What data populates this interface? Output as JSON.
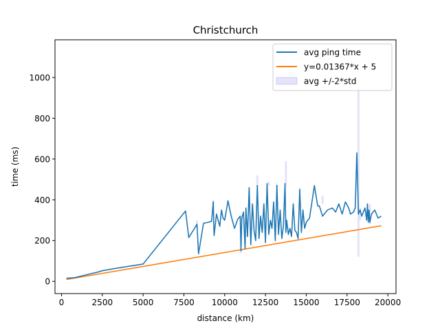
{
  "chart_data": {
    "type": "line",
    "title": "Christchurch",
    "xlabel": "distance (km)",
    "ylabel": "time (ms)",
    "xlim": [
      -400,
      20500
    ],
    "ylim": [
      -60,
      1185
    ],
    "x_ticks": [
      0,
      2500,
      5000,
      7500,
      10000,
      12500,
      15000,
      17500,
      20000
    ],
    "x_tick_labels": [
      "0",
      "2500",
      "5000",
      "7500",
      "10000",
      "12500",
      "15000",
      "17500",
      "20000"
    ],
    "y_ticks": [
      0,
      200,
      400,
      600,
      800,
      1000
    ],
    "y_tick_labels": [
      "0",
      "200",
      "400",
      "600",
      "800",
      "1000"
    ],
    "grid": false,
    "legend_position": "top-right",
    "legend": [
      {
        "label": "avg ping time",
        "kind": "line",
        "color": "#1f77b4"
      },
      {
        "label": "y=0.01367*x + 5",
        "kind": "line",
        "color": "#ff7f0e"
      },
      {
        "label": "avg +/-2*std",
        "kind": "band",
        "color": "#c8c8f5"
      }
    ],
    "series": [
      {
        "name": "avg ping time",
        "color": "#1f77b4",
        "x": [
          300,
          800,
          2200,
          2500,
          3200,
          5000,
          7600,
          7800,
          8300,
          8400,
          8700,
          9000,
          9200,
          9300,
          9350,
          9500,
          9700,
          9800,
          9900,
          10000,
          10200,
          10400,
          10600,
          10800,
          10950,
          11000,
          11050,
          11150,
          11250,
          11300,
          11400,
          11500,
          11600,
          11700,
          11800,
          11900,
          12000,
          12100,
          12200,
          12300,
          12400,
          12500,
          12600,
          12700,
          12800,
          12900,
          13000,
          13100,
          13200,
          13300,
          13400,
          13500,
          13600,
          13700,
          13750,
          13800,
          13900,
          14000,
          14100,
          14200,
          14300,
          14400,
          14500,
          14600,
          14700,
          14800,
          14900,
          15000,
          15200,
          15500,
          15700,
          15800,
          16000,
          16300,
          16600,
          16800,
          17000,
          17200,
          17400,
          17600,
          17700,
          17900,
          18000,
          18100,
          18200,
          18300,
          18400,
          18500,
          18600,
          18700,
          18750,
          18800,
          18850,
          18900,
          19000,
          19200,
          19400,
          19600
        ],
        "y": [
          15,
          18,
          45,
          52,
          62,
          85,
          345,
          215,
          280,
          135,
          285,
          290,
          295,
          390,
          225,
          330,
          270,
          350,
          310,
          300,
          395,
          320,
          260,
          305,
          320,
          150,
          310,
          340,
          160,
          360,
          220,
          460,
          180,
          380,
          250,
          200,
          470,
          210,
          320,
          240,
          380,
          190,
          480,
          230,
          300,
          260,
          390,
          200,
          470,
          230,
          350,
          210,
          270,
          480,
          240,
          300,
          230,
          260,
          220,
          380,
          250,
          240,
          210,
          450,
          240,
          350,
          260,
          290,
          310,
          470,
          370,
          370,
          320,
          350,
          360,
          340,
          380,
          330,
          390,
          360,
          330,
          340,
          360,
          630,
          330,
          350,
          320,
          340,
          360,
          300,
          380,
          290,
          350,
          290,
          330,
          350,
          310,
          320
        ]
      },
      {
        "name": "y=0.01367*x + 5",
        "color": "#ff7f0e",
        "x": [
          300,
          19600
        ],
        "y": [
          9.1,
          272.9
        ]
      }
    ],
    "band": {
      "name": "avg +/-2*std",
      "color": "#c8c8f5",
      "opacity": 0.5,
      "x": [
        8300,
        9300,
        11000,
        11700,
        12000,
        12700,
        13200,
        13750,
        14600,
        16000,
        18200,
        18300,
        18900
      ],
      "low": [
        260,
        380,
        140,
        350,
        460,
        470,
        460,
        470,
        440,
        380,
        120,
        300,
        280
      ],
      "high": [
        300,
        400,
        160,
        370,
        520,
        490,
        480,
        590,
        460,
        420,
        950,
        360,
        380
      ]
    }
  }
}
